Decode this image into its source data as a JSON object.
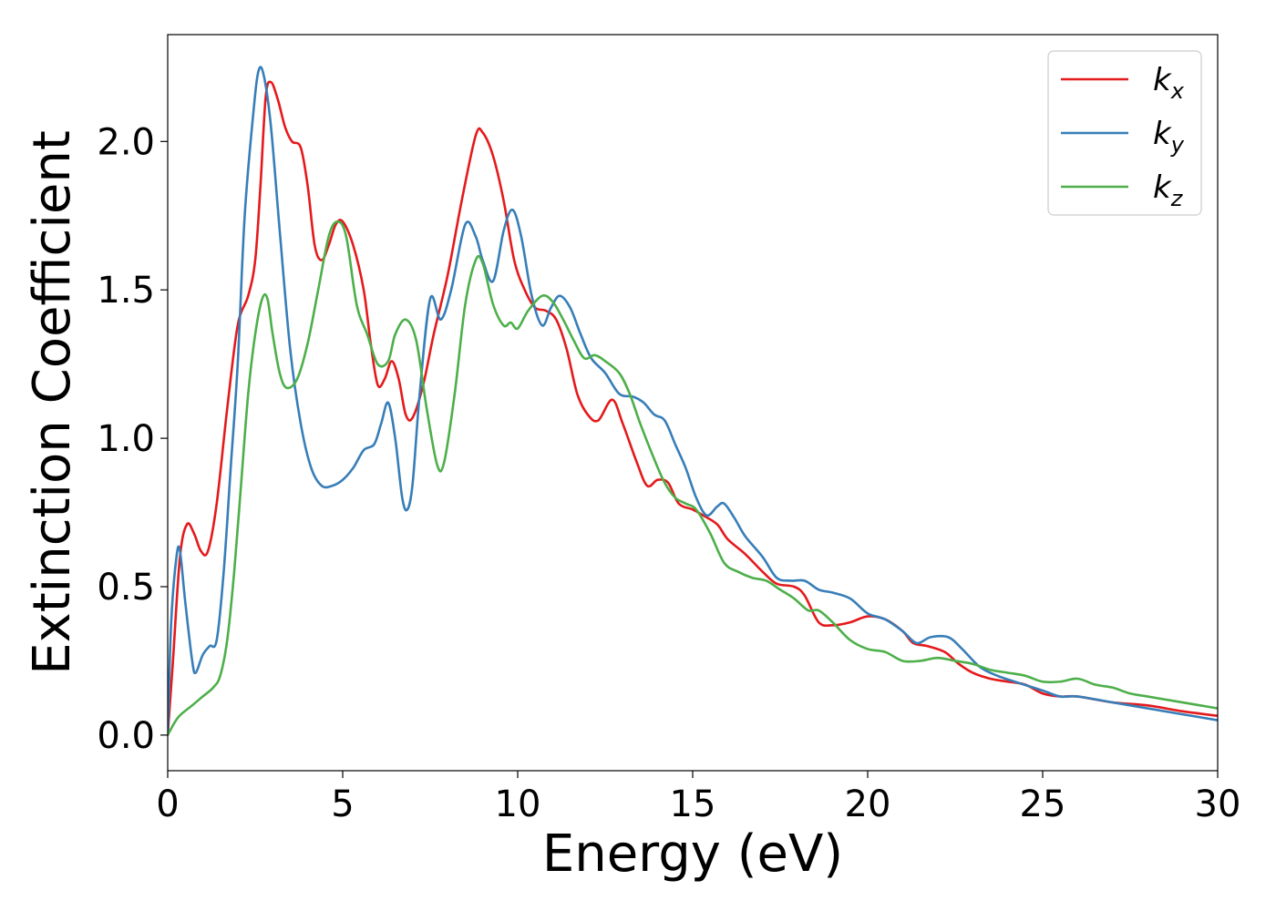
{
  "chart_data": {
    "type": "line",
    "xlabel": "Energy (eV)",
    "ylabel": "Extinction Coefficient",
    "xlim": [
      0,
      30
    ],
    "ylim": [
      -0.12,
      2.36
    ],
    "xticks": [
      0,
      5,
      10,
      15,
      20,
      25,
      30
    ],
    "xtick_labels": [
      "0",
      "5",
      "10",
      "15",
      "20",
      "25",
      "30"
    ],
    "yticks": [
      0.0,
      0.5,
      1.0,
      1.5,
      2.0
    ],
    "ytick_labels": [
      "0.0",
      "0.5",
      "1.0",
      "1.5",
      "2.0"
    ],
    "grid": false,
    "legend_position": "top-right",
    "series": [
      {
        "name": "k_x",
        "label_main": "k",
        "label_sub": "x",
        "color": "#e41a1c",
        "points": [
          [
            0,
            0.0
          ],
          [
            0.15,
            0.25
          ],
          [
            0.35,
            0.6
          ],
          [
            0.55,
            0.71
          ],
          [
            0.75,
            0.68
          ],
          [
            0.95,
            0.62
          ],
          [
            1.15,
            0.62
          ],
          [
            1.4,
            0.78
          ],
          [
            1.7,
            1.1
          ],
          [
            2.0,
            1.38
          ],
          [
            2.3,
            1.48
          ],
          [
            2.5,
            1.6
          ],
          [
            2.65,
            1.85
          ],
          [
            2.8,
            2.15
          ],
          [
            2.95,
            2.2
          ],
          [
            3.15,
            2.14
          ],
          [
            3.35,
            2.05
          ],
          [
            3.55,
            2.0
          ],
          [
            3.8,
            1.98
          ],
          [
            4.0,
            1.85
          ],
          [
            4.2,
            1.65
          ],
          [
            4.4,
            1.6
          ],
          [
            4.6,
            1.65
          ],
          [
            4.8,
            1.72
          ],
          [
            5.0,
            1.73
          ],
          [
            5.3,
            1.65
          ],
          [
            5.6,
            1.5
          ],
          [
            5.8,
            1.32
          ],
          [
            6.0,
            1.18
          ],
          [
            6.2,
            1.2
          ],
          [
            6.4,
            1.26
          ],
          [
            6.6,
            1.2
          ],
          [
            6.8,
            1.08
          ],
          [
            7.0,
            1.07
          ],
          [
            7.3,
            1.18
          ],
          [
            7.6,
            1.35
          ],
          [
            8.0,
            1.55
          ],
          [
            8.4,
            1.8
          ],
          [
            8.8,
            2.02
          ],
          [
            9.0,
            2.03
          ],
          [
            9.3,
            1.95
          ],
          [
            9.6,
            1.8
          ],
          [
            9.9,
            1.6
          ],
          [
            10.2,
            1.5
          ],
          [
            10.5,
            1.44
          ],
          [
            10.8,
            1.43
          ],
          [
            11.1,
            1.4
          ],
          [
            11.4,
            1.3
          ],
          [
            11.7,
            1.15
          ],
          [
            12.0,
            1.08
          ],
          [
            12.3,
            1.06
          ],
          [
            12.7,
            1.13
          ],
          [
            13.0,
            1.05
          ],
          [
            13.4,
            0.92
          ],
          [
            13.7,
            0.84
          ],
          [
            14.0,
            0.86
          ],
          [
            14.3,
            0.85
          ],
          [
            14.6,
            0.78
          ],
          [
            15.0,
            0.76
          ],
          [
            15.3,
            0.74
          ],
          [
            15.7,
            0.71
          ],
          [
            16.0,
            0.66
          ],
          [
            16.5,
            0.61
          ],
          [
            17.0,
            0.55
          ],
          [
            17.4,
            0.51
          ],
          [
            17.9,
            0.5
          ],
          [
            18.2,
            0.47
          ],
          [
            18.6,
            0.38
          ],
          [
            19.0,
            0.37
          ],
          [
            19.5,
            0.38
          ],
          [
            20.0,
            0.4
          ],
          [
            20.5,
            0.39
          ],
          [
            21.0,
            0.35
          ],
          [
            21.3,
            0.31
          ],
          [
            21.7,
            0.3
          ],
          [
            22.2,
            0.28
          ],
          [
            22.6,
            0.24
          ],
          [
            23.0,
            0.21
          ],
          [
            23.5,
            0.19
          ],
          [
            24.0,
            0.18
          ],
          [
            24.5,
            0.17
          ],
          [
            25.0,
            0.14
          ],
          [
            25.5,
            0.13
          ],
          [
            26.0,
            0.13
          ],
          [
            27.0,
            0.11
          ],
          [
            28.0,
            0.1
          ],
          [
            29.0,
            0.08
          ],
          [
            30.0,
            0.065
          ]
        ]
      },
      {
        "name": "k_y",
        "label_main": "k",
        "label_sub": "y",
        "color": "#377eb8",
        "points": [
          [
            0,
            0.0
          ],
          [
            0.1,
            0.38
          ],
          [
            0.25,
            0.6
          ],
          [
            0.35,
            0.62
          ],
          [
            0.5,
            0.45
          ],
          [
            0.7,
            0.25
          ],
          [
            0.8,
            0.21
          ],
          [
            1.0,
            0.27
          ],
          [
            1.2,
            0.3
          ],
          [
            1.4,
            0.32
          ],
          [
            1.6,
            0.55
          ],
          [
            1.8,
            0.9
          ],
          [
            2.0,
            1.25
          ],
          [
            2.2,
            1.75
          ],
          [
            2.45,
            2.1
          ],
          [
            2.6,
            2.24
          ],
          [
            2.75,
            2.22
          ],
          [
            2.95,
            2.05
          ],
          [
            3.2,
            1.7
          ],
          [
            3.5,
            1.3
          ],
          [
            3.8,
            1.05
          ],
          [
            4.1,
            0.9
          ],
          [
            4.4,
            0.84
          ],
          [
            4.7,
            0.84
          ],
          [
            5.0,
            0.86
          ],
          [
            5.3,
            0.9
          ],
          [
            5.6,
            0.96
          ],
          [
            5.9,
            0.98
          ],
          [
            6.1,
            1.05
          ],
          [
            6.3,
            1.12
          ],
          [
            6.5,
            1.0
          ],
          [
            6.7,
            0.8
          ],
          [
            6.85,
            0.76
          ],
          [
            7.0,
            0.85
          ],
          [
            7.2,
            1.15
          ],
          [
            7.5,
            1.47
          ],
          [
            7.8,
            1.4
          ],
          [
            8.1,
            1.5
          ],
          [
            8.5,
            1.72
          ],
          [
            8.8,
            1.68
          ],
          [
            9.0,
            1.6
          ],
          [
            9.3,
            1.53
          ],
          [
            9.6,
            1.7
          ],
          [
            9.85,
            1.77
          ],
          [
            10.1,
            1.68
          ],
          [
            10.4,
            1.48
          ],
          [
            10.7,
            1.38
          ],
          [
            10.95,
            1.44
          ],
          [
            11.2,
            1.48
          ],
          [
            11.5,
            1.44
          ],
          [
            11.8,
            1.35
          ],
          [
            12.1,
            1.27
          ],
          [
            12.5,
            1.22
          ],
          [
            12.9,
            1.15
          ],
          [
            13.3,
            1.14
          ],
          [
            13.6,
            1.12
          ],
          [
            13.9,
            1.08
          ],
          [
            14.2,
            1.06
          ],
          [
            14.5,
            0.98
          ],
          [
            14.8,
            0.9
          ],
          [
            15.1,
            0.8
          ],
          [
            15.4,
            0.74
          ],
          [
            15.7,
            0.77
          ],
          [
            15.9,
            0.78
          ],
          [
            16.2,
            0.73
          ],
          [
            16.5,
            0.67
          ],
          [
            17.0,
            0.6
          ],
          [
            17.4,
            0.53
          ],
          [
            17.8,
            0.52
          ],
          [
            18.2,
            0.52
          ],
          [
            18.6,
            0.49
          ],
          [
            19.0,
            0.48
          ],
          [
            19.5,
            0.46
          ],
          [
            20.0,
            0.41
          ],
          [
            20.5,
            0.39
          ],
          [
            21.0,
            0.35
          ],
          [
            21.4,
            0.31
          ],
          [
            21.8,
            0.33
          ],
          [
            22.3,
            0.33
          ],
          [
            22.7,
            0.29
          ],
          [
            23.2,
            0.23
          ],
          [
            23.7,
            0.2
          ],
          [
            24.2,
            0.18
          ],
          [
            25.0,
            0.15
          ],
          [
            25.5,
            0.13
          ],
          [
            26.0,
            0.13
          ],
          [
            27.0,
            0.11
          ],
          [
            28.0,
            0.09
          ],
          [
            29.0,
            0.07
          ],
          [
            30.0,
            0.05
          ]
        ]
      },
      {
        "name": "k_z",
        "label_main": "k",
        "label_sub": "z",
        "color": "#4daf4a",
        "points": [
          [
            0,
            0.0
          ],
          [
            0.3,
            0.06
          ],
          [
            0.7,
            0.1
          ],
          [
            1.0,
            0.13
          ],
          [
            1.3,
            0.16
          ],
          [
            1.5,
            0.2
          ],
          [
            1.7,
            0.32
          ],
          [
            1.9,
            0.55
          ],
          [
            2.1,
            0.85
          ],
          [
            2.3,
            1.15
          ],
          [
            2.5,
            1.35
          ],
          [
            2.7,
            1.47
          ],
          [
            2.85,
            1.47
          ],
          [
            3.0,
            1.35
          ],
          [
            3.2,
            1.22
          ],
          [
            3.4,
            1.17
          ],
          [
            3.7,
            1.2
          ],
          [
            4.0,
            1.32
          ],
          [
            4.3,
            1.5
          ],
          [
            4.6,
            1.68
          ],
          [
            4.85,
            1.73
          ],
          [
            5.1,
            1.68
          ],
          [
            5.4,
            1.45
          ],
          [
            5.7,
            1.35
          ],
          [
            6.0,
            1.25
          ],
          [
            6.3,
            1.26
          ],
          [
            6.5,
            1.35
          ],
          [
            6.8,
            1.4
          ],
          [
            7.1,
            1.33
          ],
          [
            7.4,
            1.1
          ],
          [
            7.7,
            0.91
          ],
          [
            7.9,
            0.92
          ],
          [
            8.2,
            1.15
          ],
          [
            8.5,
            1.45
          ],
          [
            8.8,
            1.6
          ],
          [
            9.0,
            1.59
          ],
          [
            9.3,
            1.45
          ],
          [
            9.6,
            1.38
          ],
          [
            9.8,
            1.39
          ],
          [
            10.0,
            1.37
          ],
          [
            10.3,
            1.43
          ],
          [
            10.7,
            1.48
          ],
          [
            11.0,
            1.46
          ],
          [
            11.3,
            1.4
          ],
          [
            11.6,
            1.33
          ],
          [
            11.9,
            1.27
          ],
          [
            12.2,
            1.28
          ],
          [
            12.5,
            1.26
          ],
          [
            12.9,
            1.22
          ],
          [
            13.2,
            1.15
          ],
          [
            13.5,
            1.05
          ],
          [
            13.9,
            0.93
          ],
          [
            14.2,
            0.85
          ],
          [
            14.5,
            0.8
          ],
          [
            14.8,
            0.78
          ],
          [
            15.1,
            0.76
          ],
          [
            15.5,
            0.68
          ],
          [
            15.9,
            0.58
          ],
          [
            16.3,
            0.55
          ],
          [
            16.7,
            0.53
          ],
          [
            17.1,
            0.52
          ],
          [
            17.5,
            0.49
          ],
          [
            17.9,
            0.46
          ],
          [
            18.3,
            0.42
          ],
          [
            18.6,
            0.42
          ],
          [
            19.0,
            0.38
          ],
          [
            19.5,
            0.32
          ],
          [
            20.0,
            0.29
          ],
          [
            20.5,
            0.28
          ],
          [
            21.0,
            0.25
          ],
          [
            21.5,
            0.25
          ],
          [
            22.0,
            0.26
          ],
          [
            22.5,
            0.25
          ],
          [
            23.0,
            0.24
          ],
          [
            23.5,
            0.22
          ],
          [
            24.0,
            0.21
          ],
          [
            24.5,
            0.2
          ],
          [
            25.0,
            0.18
          ],
          [
            25.5,
            0.18
          ],
          [
            26.0,
            0.19
          ],
          [
            26.5,
            0.17
          ],
          [
            27.0,
            0.16
          ],
          [
            27.5,
            0.14
          ],
          [
            28.0,
            0.13
          ],
          [
            28.5,
            0.12
          ],
          [
            29.0,
            0.11
          ],
          [
            29.5,
            0.1
          ],
          [
            30.0,
            0.09
          ]
        ]
      }
    ]
  }
}
